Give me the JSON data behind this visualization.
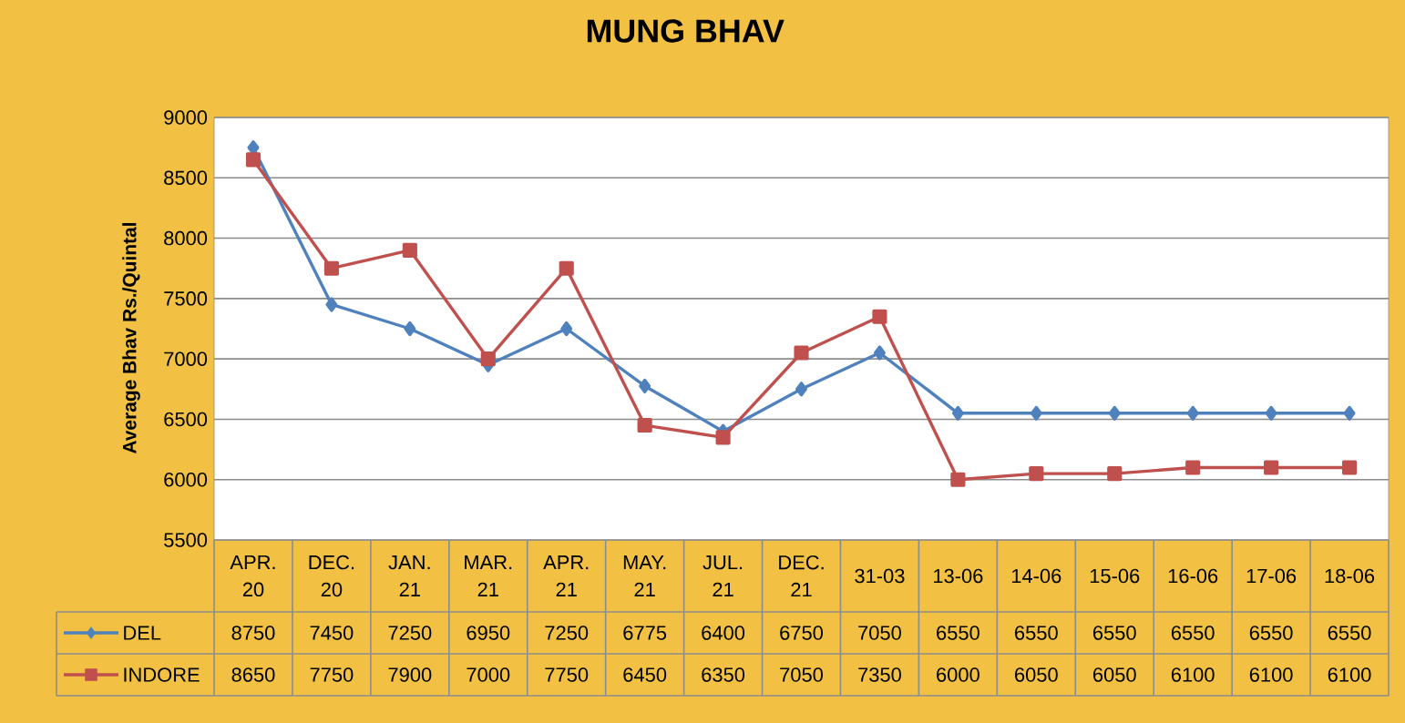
{
  "chart_data": {
    "type": "line",
    "title": "MUNG BHAV",
    "ylabel": "Average Bhav Rs./Quintal",
    "categories": [
      "APR. 20",
      "DEC. 20",
      "JAN. 21",
      "MAR. 21",
      "APR. 21",
      "MAY. 21",
      "JUL. 21",
      "DEC. 21",
      "31-03",
      "13-06",
      "14-06",
      "15-06",
      "16-06",
      "17-06",
      "18-06"
    ],
    "series": [
      {
        "name": "DEL",
        "color": "#4f81bd",
        "marker": "diamond",
        "values": [
          8750,
          7450,
          7250,
          6950,
          7250,
          6775,
          6400,
          6750,
          7050,
          6550,
          6550,
          6550,
          6550,
          6550,
          6550
        ]
      },
      {
        "name": "INDORE",
        "color": "#c0504d",
        "marker": "square",
        "values": [
          8650,
          7750,
          7900,
          7000,
          7750,
          6450,
          6350,
          7050,
          7350,
          6000,
          6050,
          6050,
          6100,
          6100,
          6100
        ]
      }
    ],
    "ylim": [
      5500,
      9000
    ],
    "yticks": [
      5500,
      6000,
      6500,
      7000,
      7500,
      8000,
      8500,
      9000
    ],
    "grid": "y",
    "legend": "bottom",
    "data_labels": true
  }
}
